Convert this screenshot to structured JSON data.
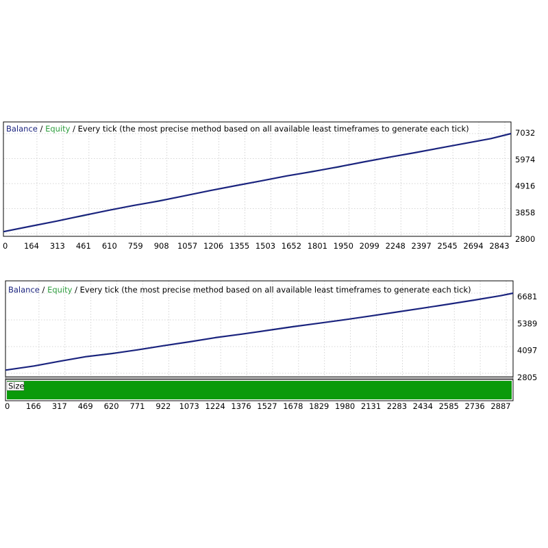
{
  "colors": {
    "balance": "#1a237e",
    "equity": "#2e9e3e",
    "legend_text": "#000000",
    "grid": "#c8c8c8",
    "frame": "#000000",
    "size_bar": "#0a9a0a"
  },
  "chart_data": [
    {
      "type": "line",
      "legend": {
        "balance": "Balance",
        "sep1": " / ",
        "equity": "Equity",
        "sep2": " / ",
        "method": "Every tick (the most precise method based on all available least timeframes to generate each tick)"
      },
      "x_ticks": [
        "0",
        "164",
        "313",
        "461",
        "610",
        "759",
        "908",
        "1057",
        "1206",
        "1355",
        "1503",
        "1652",
        "1801",
        "1950",
        "2099",
        "2248",
        "2397",
        "2545",
        "2694",
        "2843"
      ],
      "y_ticks": [
        "7032",
        "5974",
        "4916",
        "3858",
        "2800"
      ],
      "xlim": [
        0,
        2960
      ],
      "ylim": [
        2800,
        7032
      ],
      "grid": true,
      "series": [
        {
          "name": "Balance",
          "x": [
            0,
            164,
            313,
            461,
            610,
            759,
            908,
            1057,
            1206,
            1355,
            1503,
            1652,
            1801,
            1950,
            2099,
            2248,
            2397,
            2545,
            2694,
            2843,
            2960
          ],
          "y": [
            2880,
            3120,
            3330,
            3560,
            3780,
            3990,
            4180,
            4400,
            4620,
            4830,
            5030,
            5240,
            5420,
            5620,
            5830,
            6030,
            6220,
            6420,
            6620,
            6820,
            7032
          ]
        },
        {
          "name": "Equity",
          "x": [
            0,
            164,
            313,
            461,
            610,
            759,
            908,
            1057,
            1206,
            1355,
            1503,
            1652,
            1801,
            1950,
            2099,
            2248,
            2397,
            2545,
            2694,
            2843,
            2960
          ],
          "y": [
            2870,
            3110,
            3340,
            3540,
            3790,
            3980,
            4200,
            4390,
            4630,
            4820,
            5040,
            5230,
            5440,
            5600,
            5840,
            6020,
            6230,
            6410,
            6630,
            6810,
            7020
          ]
        }
      ]
    },
    {
      "type": "line",
      "legend": {
        "balance": "Balance",
        "sep1": " / ",
        "equity": "Equity",
        "sep2": " / ",
        "method": "Every tick (the most precise method based on all available least timeframes to generate each tick)"
      },
      "x_ticks": [
        "0",
        "166",
        "317",
        "469",
        "620",
        "771",
        "922",
        "1073",
        "1224",
        "1376",
        "1527",
        "1678",
        "1829",
        "1980",
        "2131",
        "2283",
        "2434",
        "2585",
        "2736",
        "2887"
      ],
      "y_ticks": [
        "6681",
        "5389",
        "4097",
        "2805"
      ],
      "xlim": [
        0,
        2960
      ],
      "ylim": [
        2805,
        6681
      ],
      "grid": true,
      "series": [
        {
          "name": "Balance",
          "x": [
            0,
            166,
            317,
            469,
            620,
            771,
            922,
            1073,
            1224,
            1376,
            1527,
            1678,
            1829,
            1980,
            2131,
            2283,
            2434,
            2585,
            2736,
            2887,
            2960
          ],
          "y": [
            2960,
            3160,
            3390,
            3610,
            3760,
            3940,
            4140,
            4330,
            4530,
            4700,
            4880,
            5060,
            5230,
            5400,
            5580,
            5770,
            5960,
            6150,
            6350,
            6560,
            6681
          ]
        },
        {
          "name": "Equity",
          "x": [
            0,
            166,
            317,
            469,
            620,
            771,
            922,
            1073,
            1224,
            1376,
            1527,
            1678,
            1829,
            1980,
            2131,
            2283,
            2434,
            2585,
            2736,
            2887,
            2960
          ],
          "y": [
            2950,
            3170,
            3380,
            3620,
            3780,
            3930,
            4150,
            4320,
            4540,
            4690,
            4890,
            5080,
            5220,
            5410,
            5570,
            5780,
            5950,
            6160,
            6340,
            6570,
            6670
          ]
        }
      ],
      "sub_panel": {
        "label": "Size"
      }
    }
  ]
}
